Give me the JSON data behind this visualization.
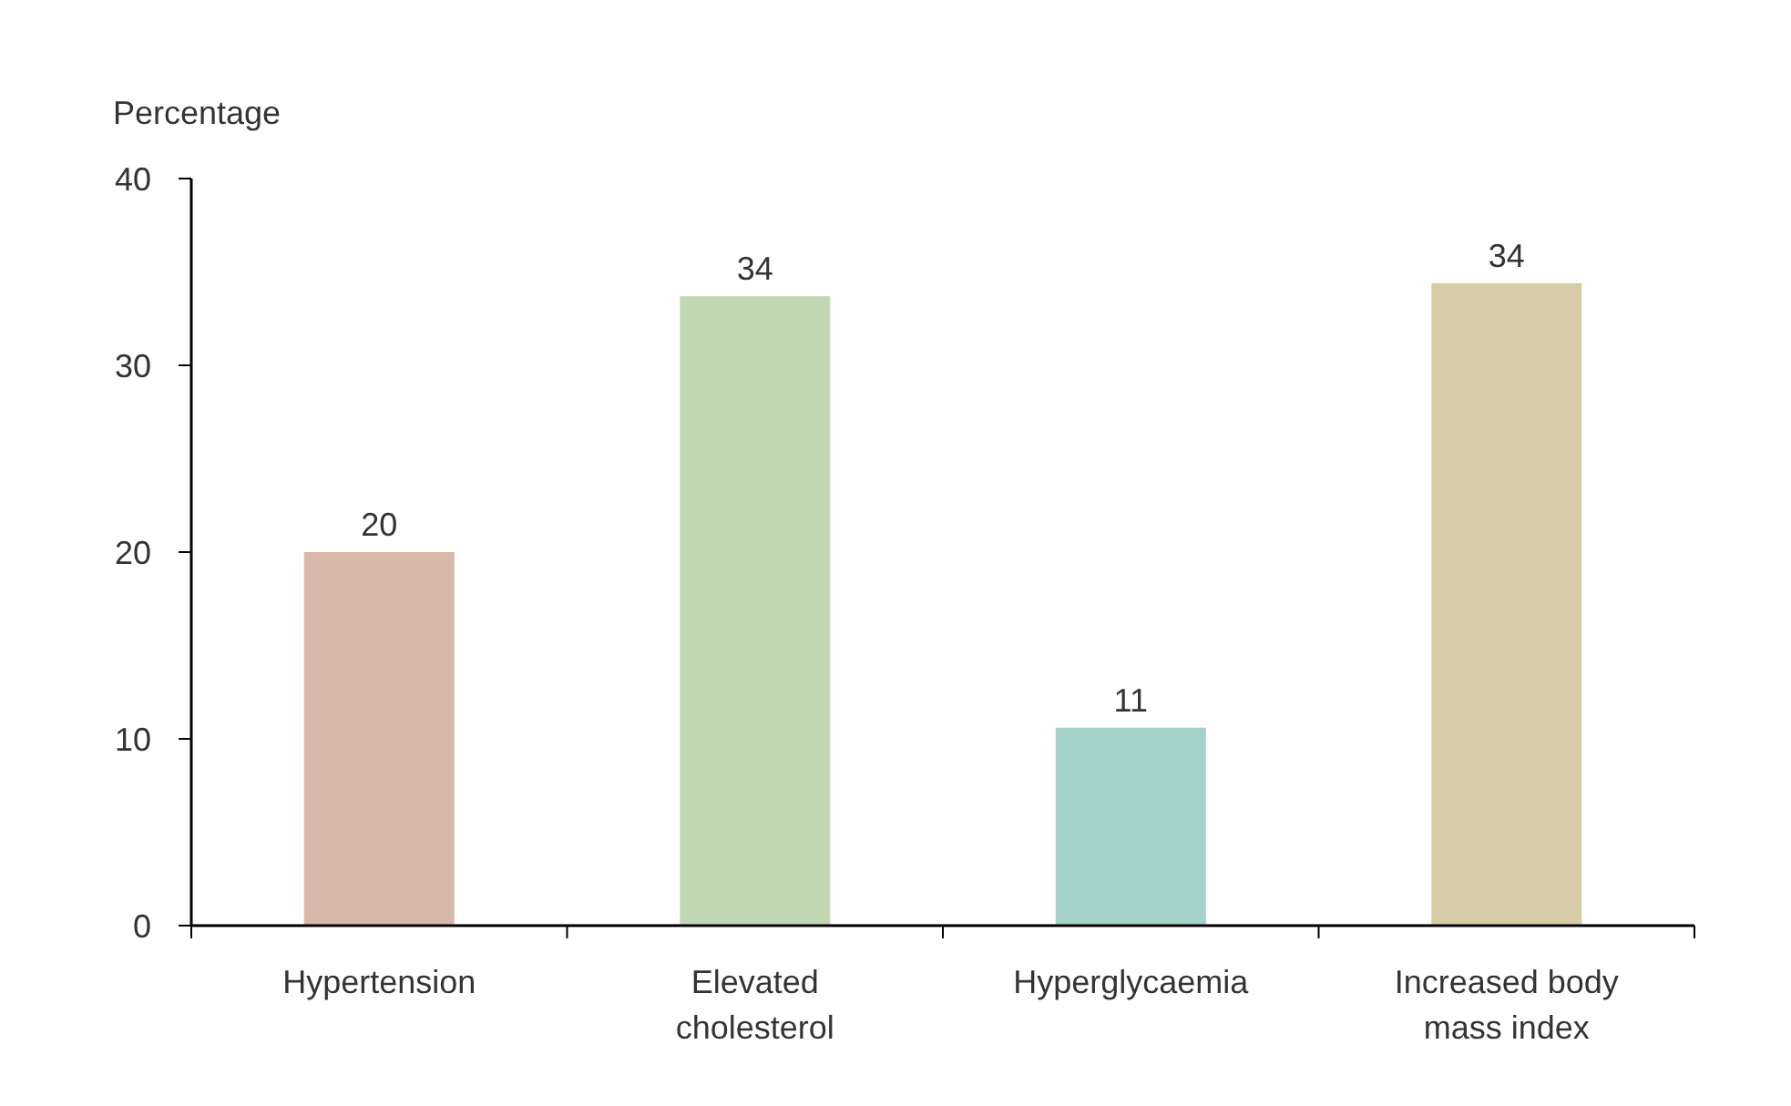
{
  "chart_data": {
    "type": "bar",
    "ylabel": "Percentage",
    "categories": [
      "Hypertension",
      "Elevated cholesterol",
      "Hyperglycaemia",
      "Increased body mass index"
    ],
    "values": [
      20,
      33.7,
      10.6,
      34.4
    ],
    "colors": [
      "#d8b8a8",
      "#c2d8b5",
      "#a6d2ce",
      "#d6cda8"
    ],
    "value_labels": [
      "20",
      "34",
      "11",
      "34"
    ],
    "ylim": [
      0,
      40
    ],
    "yticks": [
      0,
      10,
      20,
      30,
      40
    ],
    "grid": false
  }
}
